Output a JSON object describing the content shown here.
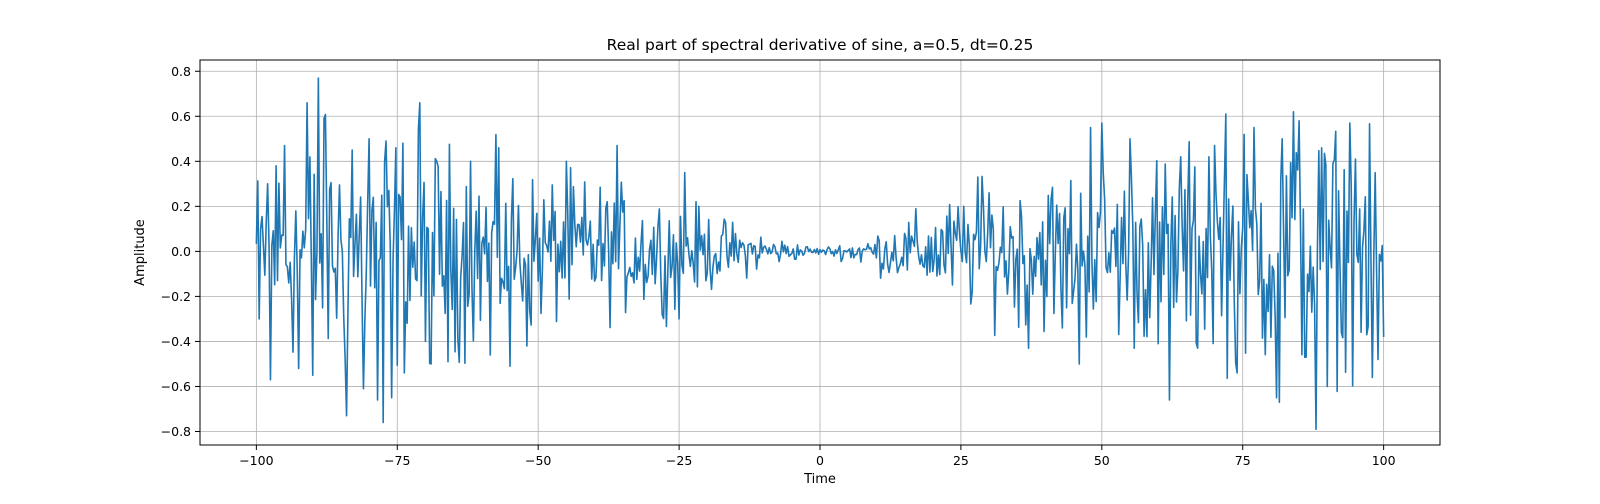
{
  "chart_data": {
    "type": "line",
    "title": "Real part of spectral derivative of sine, a=0.5, dt=0.25",
    "xlabel": "Time",
    "ylabel": "Amplitude",
    "xlim": [
      -110,
      110
    ],
    "ylim": [
      -0.86,
      0.85
    ],
    "xticks": [
      -100,
      -75,
      -50,
      -25,
      0,
      25,
      50,
      75,
      100
    ],
    "xtick_labels": [
      "−100",
      "−75",
      "−50",
      "−25",
      "0",
      "25",
      "50",
      "75",
      "100"
    ],
    "yticks": [
      -0.8,
      -0.6,
      -0.4,
      -0.2,
      0.0,
      0.2,
      0.4,
      0.6,
      0.8
    ],
    "ytick_labels": [
      "−0.8",
      "−0.6",
      "−0.4",
      "−0.2",
      "0.0",
      "0.2",
      "0.4",
      "0.6",
      "0.8"
    ],
    "grid": true,
    "series": [
      {
        "color": "#1f77b4",
        "x_start": -100,
        "x_end": 100,
        "x_step": 0.25,
        "envelope_points": [
          [
            -100,
            0.52
          ],
          [
            -90,
            0.78
          ],
          [
            -75,
            0.76
          ],
          [
            -60,
            0.58
          ],
          [
            -50,
            0.47
          ],
          [
            -40,
            0.42
          ],
          [
            -25,
            0.32
          ],
          [
            -15,
            0.17
          ],
          [
            -5,
            0.06
          ],
          [
            0,
            0.02
          ],
          [
            5,
            0.06
          ],
          [
            15,
            0.2
          ],
          [
            25,
            0.35
          ],
          [
            35,
            0.45
          ],
          [
            50,
            0.55
          ],
          [
            65,
            0.62
          ],
          [
            80,
            0.72
          ],
          [
            88,
            0.8
          ],
          [
            100,
            0.58
          ]
        ],
        "peaks": [
          [
            -99.5,
            -0.3
          ],
          [
            -98,
            0.3
          ],
          [
            -97.5,
            -0.57
          ],
          [
            -96.5,
            0.38
          ],
          [
            -95,
            0.47
          ],
          [
            -92.5,
            -0.52
          ],
          [
            -91,
            0.66
          ],
          [
            -90,
            -0.55
          ],
          [
            -89,
            0.77
          ],
          [
            -88,
            0.59
          ],
          [
            -84,
            -0.73
          ],
          [
            -83,
            0.45
          ],
          [
            -81,
            -0.61
          ],
          [
            -80,
            0.5
          ],
          [
            -78.5,
            -0.66
          ],
          [
            -77.5,
            -0.76
          ],
          [
            -77,
            0.49
          ],
          [
            -76,
            -0.65
          ],
          [
            -71,
            0.66
          ],
          [
            -70,
            -0.4
          ],
          [
            -69,
            -0.5
          ],
          [
            -66,
            -0.49
          ],
          [
            -62,
            0.4
          ],
          [
            -58.5,
            -0.46
          ],
          [
            -57,
            0.46
          ],
          [
            -55,
            -0.51
          ],
          [
            -52,
            -0.42
          ],
          [
            -45,
            0.4
          ],
          [
            -36,
            0.47
          ],
          [
            -28,
            -0.28
          ],
          [
            -25,
            -0.3
          ],
          [
            -24,
            0.35
          ],
          [
            28,
            0.33
          ],
          [
            30,
            0.26
          ],
          [
            37,
            -0.43
          ],
          [
            43,
            -0.34
          ],
          [
            46,
            -0.5
          ],
          [
            48,
            0.55
          ],
          [
            50,
            0.57
          ],
          [
            55,
            0.5
          ],
          [
            60,
            -0.41
          ],
          [
            62,
            -0.66
          ],
          [
            64,
            0.42
          ],
          [
            67,
            -0.43
          ],
          [
            69,
            0.42
          ],
          [
            70,
            0.47
          ],
          [
            72,
            0.61
          ],
          [
            74,
            -0.54
          ],
          [
            77,
            0.55
          ],
          [
            81,
            -0.65
          ],
          [
            81.5,
            -0.67
          ],
          [
            82,
            0.5
          ],
          [
            84,
            0.62
          ],
          [
            85,
            0.58
          ],
          [
            86,
            -0.47
          ],
          [
            88,
            -0.79
          ],
          [
            89,
            0.46
          ],
          [
            90,
            -0.6
          ],
          [
            91,
            0.39
          ],
          [
            92.5,
            -0.36
          ],
          [
            94,
            0.57
          ],
          [
            95,
            0.41
          ],
          [
            97,
            -0.37
          ],
          [
            98,
            -0.56
          ],
          [
            99,
            -0.48
          ],
          [
            100,
            -0.38
          ]
        ]
      }
    ]
  }
}
